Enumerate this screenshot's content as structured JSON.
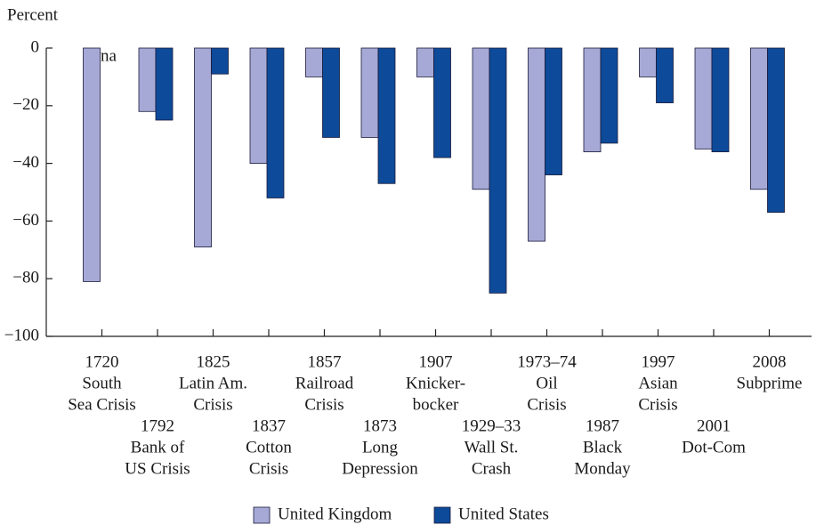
{
  "chart_data": {
    "type": "bar",
    "y_label": "Percent",
    "categories": [
      [
        "1720",
        "South",
        "Sea Crisis"
      ],
      [
        "1792",
        "Bank of",
        "US Crisis"
      ],
      [
        "1825",
        "Latin Am.",
        "Crisis"
      ],
      [
        "1837",
        "Cotton",
        "Crisis"
      ],
      [
        "1857",
        "Railroad",
        "Crisis"
      ],
      [
        "1873",
        "Long",
        "Depression"
      ],
      [
        "1907",
        "Knicker-",
        "bocker"
      ],
      [
        "1929–33",
        "Wall St.",
        "Crash"
      ],
      [
        "1973–74",
        "Oil",
        "Crisis"
      ],
      [
        "1987",
        "Black",
        "Monday"
      ],
      [
        "1997",
        "Asian",
        "Crisis"
      ],
      [
        "2001",
        "Dot-Com"
      ],
      [
        "2008",
        "Subprime"
      ]
    ],
    "series": [
      {
        "name": "United Kingdom",
        "color": "#a6a9d6",
        "values": [
          -81,
          -22,
          -69,
          -40,
          -10,
          -31,
          -10,
          -49,
          -67,
          -36,
          -10,
          -35,
          -49
        ]
      },
      {
        "name": "United States",
        "color": "#0d4a99",
        "values": [
          null,
          -25,
          -9,
          -52,
          -31,
          -47,
          -38,
          -85,
          -44,
          -33,
          -19,
          -36,
          -57
        ]
      }
    ],
    "annotations": [
      "na"
    ],
    "ylim": [
      -100,
      0
    ],
    "yticks": [
      {
        "value": -100,
        "label": "−100"
      },
      {
        "value": -80,
        "label": "−80"
      },
      {
        "value": -60,
        "label": "−60"
      },
      {
        "value": -40,
        "label": "−40"
      },
      {
        "value": -20,
        "label": "−20"
      },
      0
    ],
    "legend": "bottom"
  }
}
